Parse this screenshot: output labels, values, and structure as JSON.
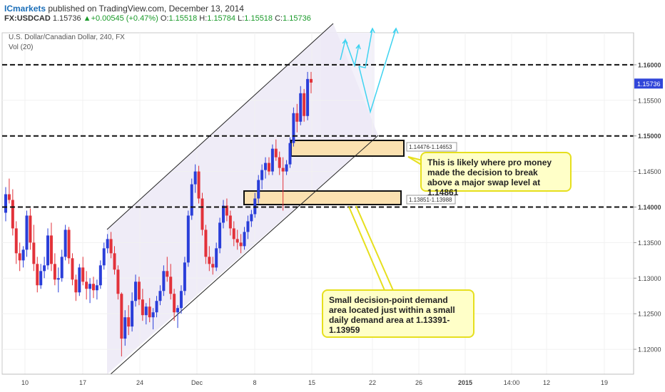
{
  "header": {
    "brand": "ICmarkets",
    "published": " published on TradingView.com, December 13, 2014",
    "symbol": "FX:USDCAD",
    "last": "1.15736",
    "change": "+0.00545 (+0.47%)",
    "o_label": "O:",
    "o": "1.15518",
    "h_label": "H:",
    "h": "1.15784",
    "l_label": "L:",
    "l": "1.15518",
    "c_label": "C:",
    "c": "1.15736"
  },
  "overlay": {
    "title": "U.S. Dollar/Canadian Dollar, 240, FX",
    "vol": "Vol (20)"
  },
  "callouts": {
    "top": "This is likely where pro money made the decision to break above a major swap level at 1.14861",
    "bottom": "Small decision-point demand area located just within a small daily demand area at 1.13391-1.13959"
  },
  "chart_data": {
    "type": "candlestick",
    "y_ticks": [
      "1.16000",
      "1.15500",
      "1.15000",
      "1.14500",
      "1.14000",
      "1.13500",
      "1.13000",
      "1.12500",
      "1.12000"
    ],
    "y_range": [
      1.1165,
      1.1645
    ],
    "x_ticks": [
      "10",
      "17",
      "24",
      "Dec",
      "8",
      "15",
      "22",
      "26",
      "2015",
      "14:00",
      "12",
      "19"
    ],
    "current_price": "1.15736",
    "levels": [
      {
        "price": 1.16,
        "label": "1.16000"
      },
      {
        "price": 1.15,
        "label": "1.15000"
      },
      {
        "price": 1.14,
        "label": "1.14000"
      }
    ],
    "zones": [
      {
        "label": "1.14476-1.14653",
        "low": 1.14476,
        "high": 1.14653
      },
      {
        "label": "1.13851-1.13988",
        "low": 1.13851,
        "high": 1.13988
      }
    ],
    "candles": [
      [
        1.1392,
        1.1428,
        1.138,
        1.1418
      ],
      [
        1.1418,
        1.144,
        1.1405,
        1.141
      ],
      [
        1.141,
        1.1425,
        1.136,
        1.137
      ],
      [
        1.137,
        1.138,
        1.132,
        1.1335
      ],
      [
        1.1335,
        1.135,
        1.131,
        1.1325
      ],
      [
        1.1325,
        1.1345,
        1.1315,
        1.134
      ],
      [
        1.134,
        1.1395,
        1.133,
        1.1388
      ],
      [
        1.1388,
        1.1398,
        1.134,
        1.135
      ],
      [
        1.135,
        1.1375,
        1.131,
        1.132
      ],
      [
        1.132,
        1.133,
        1.128,
        1.129
      ],
      [
        1.129,
        1.132,
        1.1285,
        1.131
      ],
      [
        1.131,
        1.133,
        1.13,
        1.1318
      ],
      [
        1.1318,
        1.137,
        1.1312,
        1.136
      ],
      [
        1.136,
        1.1378,
        1.131,
        1.132
      ],
      [
        1.132,
        1.1335,
        1.129,
        1.1298
      ],
      [
        1.1298,
        1.1315,
        1.128,
        1.13
      ],
      [
        1.13,
        1.134,
        1.1295,
        1.133
      ],
      [
        1.133,
        1.1375,
        1.1325,
        1.1368
      ],
      [
        1.1368,
        1.1372,
        1.132,
        1.1328
      ],
      [
        1.1328,
        1.1335,
        1.129,
        1.1298
      ],
      [
        1.1298,
        1.1305,
        1.1268,
        1.128
      ],
      [
        1.128,
        1.132,
        1.1275,
        1.1315
      ],
      [
        1.1315,
        1.133,
        1.129,
        1.1295
      ],
      [
        1.1295,
        1.131,
        1.127,
        1.1285
      ],
      [
        1.1285,
        1.13,
        1.1265,
        1.1292
      ],
      [
        1.1292,
        1.1302,
        1.1272,
        1.1283
      ],
      [
        1.1283,
        1.1298,
        1.127,
        1.129
      ],
      [
        1.129,
        1.1325,
        1.1285,
        1.1318
      ],
      [
        1.1318,
        1.135,
        1.1312,
        1.1342
      ],
      [
        1.1342,
        1.1362,
        1.1335,
        1.1355
      ],
      [
        1.1355,
        1.1365,
        1.1328,
        1.1335
      ],
      [
        1.1335,
        1.1345,
        1.1305,
        1.1312
      ],
      [
        1.1312,
        1.1318,
        1.127,
        1.1278
      ],
      [
        1.1278,
        1.128,
        1.119,
        1.1215
      ],
      [
        1.1215,
        1.1255,
        1.1205,
        1.1245
      ],
      [
        1.1245,
        1.1262,
        1.122,
        1.1232
      ],
      [
        1.1232,
        1.128,
        1.1225,
        1.1268
      ],
      [
        1.1268,
        1.1305,
        1.126,
        1.1295
      ],
      [
        1.1295,
        1.1302,
        1.1262,
        1.127
      ],
      [
        1.127,
        1.1285,
        1.124,
        1.1248
      ],
      [
        1.1248,
        1.1265,
        1.1235,
        1.126
      ],
      [
        1.126,
        1.1272,
        1.1238,
        1.1245
      ],
      [
        1.1245,
        1.1258,
        1.1228,
        1.1252
      ],
      [
        1.1252,
        1.1275,
        1.1245,
        1.1268
      ],
      [
        1.1268,
        1.129,
        1.1262,
        1.1282
      ],
      [
        1.1282,
        1.1318,
        1.1275,
        1.131
      ],
      [
        1.131,
        1.133,
        1.1295,
        1.1302
      ],
      [
        1.1302,
        1.132,
        1.127,
        1.1278
      ],
      [
        1.1278,
        1.1285,
        1.124,
        1.1252
      ],
      [
        1.1252,
        1.1262,
        1.123,
        1.1258
      ],
      [
        1.1258,
        1.129,
        1.125,
        1.1282
      ],
      [
        1.1282,
        1.133,
        1.1276,
        1.1322
      ],
      [
        1.1322,
        1.1395,
        1.1316,
        1.1388
      ],
      [
        1.1388,
        1.144,
        1.1382,
        1.1432
      ],
      [
        1.1432,
        1.146,
        1.142,
        1.145
      ],
      [
        1.145,
        1.1458,
        1.1405,
        1.1412
      ],
      [
        1.1412,
        1.142,
        1.136,
        1.1368
      ],
      [
        1.1368,
        1.1375,
        1.132,
        1.133
      ],
      [
        1.133,
        1.1345,
        1.131,
        1.132
      ],
      [
        1.132,
        1.133,
        1.1305,
        1.1315
      ],
      [
        1.1315,
        1.135,
        1.131,
        1.1342
      ],
      [
        1.1342,
        1.1385,
        1.1335,
        1.1378
      ],
      [
        1.1378,
        1.141,
        1.137,
        1.1402
      ],
      [
        1.1402,
        1.1412,
        1.138,
        1.1388
      ],
      [
        1.1388,
        1.1395,
        1.136,
        1.137
      ],
      [
        1.137,
        1.138,
        1.1345,
        1.1355
      ],
      [
        1.1355,
        1.1368,
        1.134,
        1.135
      ],
      [
        1.135,
        1.1362,
        1.1335,
        1.1345
      ],
      [
        1.1345,
        1.1372,
        1.134,
        1.1365
      ],
      [
        1.1365,
        1.1388,
        1.1355,
        1.138
      ],
      [
        1.138,
        1.1396,
        1.1372,
        1.139
      ],
      [
        1.139,
        1.142,
        1.1385,
        1.1412
      ],
      [
        1.1412,
        1.1445,
        1.1405,
        1.1438
      ],
      [
        1.1438,
        1.146,
        1.1425,
        1.1452
      ],
      [
        1.1452,
        1.147,
        1.144,
        1.1462
      ],
      [
        1.1462,
        1.147,
        1.1445,
        1.145
      ],
      [
        1.145,
        1.1488,
        1.1445,
        1.1482
      ],
      [
        1.1482,
        1.1495,
        1.1465,
        1.147
      ],
      [
        1.147,
        1.1478,
        1.1445,
        1.1455
      ],
      [
        1.1455,
        1.147,
        1.1395,
        1.145
      ],
      [
        1.145,
        1.1466,
        1.1445,
        1.146
      ],
      [
        1.146,
        1.1498,
        1.1455,
        1.149
      ],
      [
        1.149,
        1.154,
        1.1485,
        1.1532
      ],
      [
        1.1532,
        1.1545,
        1.1505,
        1.152
      ],
      [
        1.152,
        1.157,
        1.1515,
        1.156
      ],
      [
        1.156,
        1.1566,
        1.152,
        1.1528
      ],
      [
        1.1528,
        1.159,
        1.1522,
        1.158
      ],
      [
        1.158,
        1.159,
        1.156,
        1.1575
      ]
    ]
  }
}
